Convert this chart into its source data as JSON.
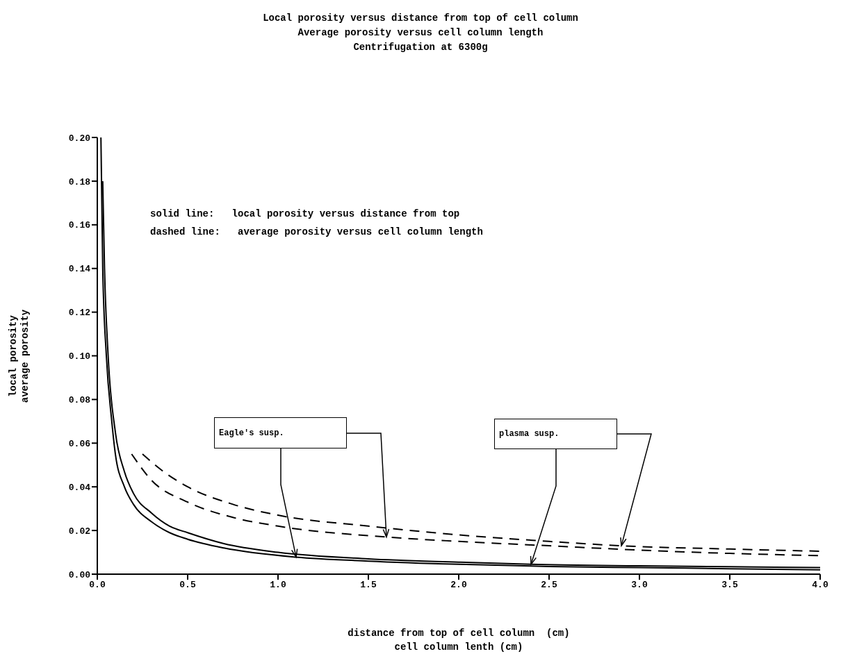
{
  "chart_data": {
    "type": "line",
    "title": "Local porosity versus distance from top of cell column",
    "subtitle": "Average porosity versus cell column length\nCentrifugation at 6300g",
    "xlabel": "distance from top of cell column  (cm)\ncell column lenth (cm)",
    "ylabel": "local porosity\naverage porosity",
    "annotations": [
      "solid line:   local porosity versus distance from top",
      "dashed line:   average porosity versus cell column length",
      {
        "text": "Eagle's susp.",
        "x": 1.1,
        "y": 0.0078
      },
      {
        "text": "plasma susp.",
        "x": 2.4,
        "y": 0.0045
      }
    ],
    "xlim": [
      0,
      4
    ],
    "xticks": [
      {
        "value": 0,
        "label": "0.0"
      },
      {
        "value": 0.5,
        "label": "0.5"
      },
      {
        "value": 1,
        "label": "1.0"
      },
      {
        "value": 1.5,
        "label": "1.5"
      },
      {
        "value": 2,
        "label": "2.0"
      },
      {
        "value": 2.5,
        "label": "2.5"
      },
      {
        "value": 3,
        "label": "3.0"
      },
      {
        "value": 3.5,
        "label": "3.5"
      },
      {
        "value": 4,
        "label": "4.0"
      }
    ],
    "ylim": [
      0,
      0.2
    ],
    "yticks": [
      {
        "value": 0,
        "label": "0.00"
      },
      {
        "value": 0.02,
        "label": "0.02"
      },
      {
        "value": 0.04,
        "label": "0.04"
      },
      {
        "value": 0.06,
        "label": "0.06"
      },
      {
        "value": 0.08,
        "label": "0.08"
      },
      {
        "value": 0.1,
        "label": "0.10"
      },
      {
        "value": 0.12,
        "label": "0.12"
      },
      {
        "value": 0.14,
        "label": "0.14"
      },
      {
        "value": 0.16,
        "label": "0.16"
      },
      {
        "value": 0.18,
        "label": "0.18"
      },
      {
        "value": 0.2,
        "label": "0.20"
      }
    ],
    "series": [
      {
        "color": "#000000",
        "line_style": "solid",
        "x": [
          0.02,
          0.03,
          0.05,
          0.08,
          0.1,
          0.15,
          0.2,
          0.3,
          0.4,
          0.5,
          0.7,
          1.1,
          1.5,
          2.0,
          2.5,
          3.0,
          3.5,
          4.0
        ],
        "values": [
          0.2,
          0.14,
          0.1,
          0.07,
          0.055,
          0.04,
          0.032,
          0.024,
          0.019,
          0.016,
          0.012,
          0.0078,
          0.006,
          0.0045,
          0.0035,
          0.003,
          0.0025,
          0.002
        ]
      },
      {
        "color": "#000000",
        "line_style": "solid",
        "x": [
          0.03,
          0.04,
          0.06,
          0.1,
          0.15,
          0.2,
          0.3,
          0.4,
          0.5,
          0.7,
          1.0,
          1.5,
          2.0,
          2.4,
          3.0,
          3.5,
          4.0
        ],
        "values": [
          0.18,
          0.14,
          0.1,
          0.065,
          0.047,
          0.037,
          0.028,
          0.022,
          0.019,
          0.014,
          0.01,
          0.007,
          0.0055,
          0.0045,
          0.0038,
          0.0034,
          0.003
        ]
      },
      {
        "color": "#000000",
        "line_style": "dashed",
        "x": [
          0.19,
          0.3,
          0.5,
          0.75,
          1.0,
          1.6,
          2.0,
          2.5,
          3.0,
          3.5,
          4.0
        ],
        "values": [
          0.055,
          0.043,
          0.033,
          0.026,
          0.022,
          0.017,
          0.015,
          0.013,
          0.011,
          0.0095,
          0.0085
        ]
      },
      {
        "color": "#000000",
        "line_style": "dashed",
        "x": [
          0.25,
          0.35,
          0.5,
          0.75,
          1.0,
          1.5,
          2.0,
          2.5,
          2.9,
          3.5,
          4.0
        ],
        "values": [
          0.055,
          0.048,
          0.04,
          0.032,
          0.027,
          0.022,
          0.018,
          0.015,
          0.013,
          0.0115,
          0.0105
        ]
      }
    ]
  }
}
